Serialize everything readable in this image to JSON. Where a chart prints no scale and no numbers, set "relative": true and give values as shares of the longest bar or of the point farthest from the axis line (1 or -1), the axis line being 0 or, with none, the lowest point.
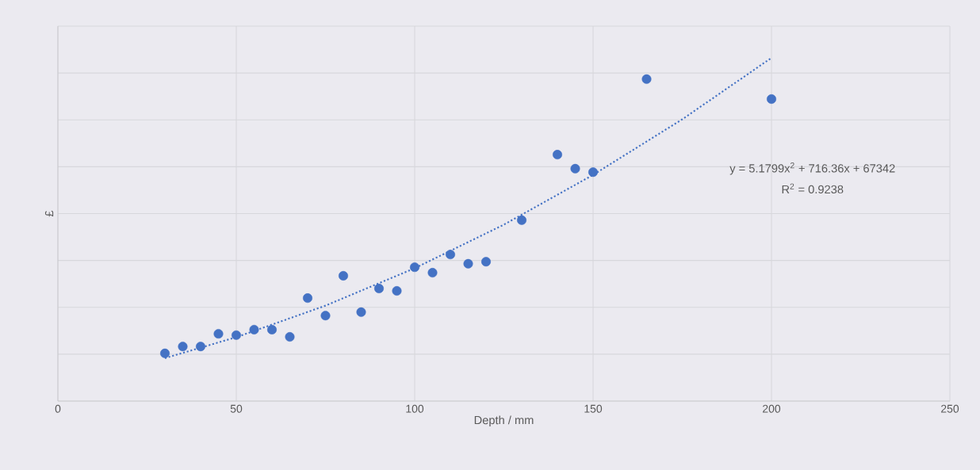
{
  "chart_data": {
    "type": "scatter",
    "relative": true,
    "xlabel": "Depth / mm",
    "ylabel": "£",
    "xlim": [
      0,
      250
    ],
    "xticks": [
      0,
      50,
      100,
      150,
      200,
      250
    ],
    "grid": true,
    "tick_labels": "x",
    "annotations": [
      "y = 5.1799x$^{2}$ + 716.36x + 67342",
      "R$^{2}$ = 0.9238"
    ],
    "series": [
      {
        "color": "#4472c4",
        "marker": "circle",
        "x": [
          30,
          35,
          40,
          45,
          50,
          55,
          60,
          65,
          70,
          75,
          80,
          85,
          90,
          95,
          100,
          105,
          110,
          115,
          120,
          130,
          140,
          145,
          150,
          165,
          200
        ],
        "values": [
          0.139,
          0.159,
          0.159,
          0.196,
          0.192,
          0.208,
          0.208,
          0.187,
          0.3,
          0.249,
          0.365,
          0.259,
          0.328,
          0.321,
          0.39,
          0.374,
          0.427,
          0.4,
          0.406,
          0.527,
          0.718,
          0.677,
          0.667,
          0.938,
          0.88
        ]
      },
      {
        "type": "line",
        "color": "#4472c4",
        "marker": "none",
        "line_style": "dotted",
        "x": [
          30,
          50,
          75,
          100,
          125,
          150,
          175,
          200
        ],
        "values": [
          0.125,
          0.186,
          0.278,
          0.387,
          0.514,
          0.659,
          0.821,
          1.0
        ]
      }
    ]
  }
}
